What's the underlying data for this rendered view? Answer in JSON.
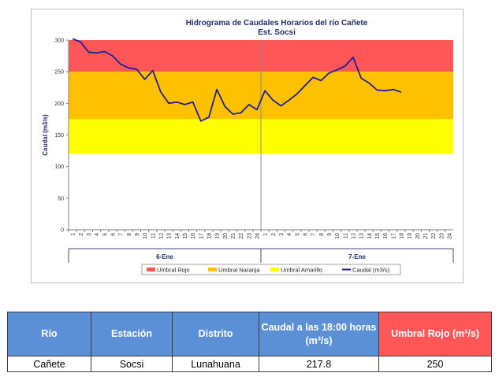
{
  "chart_data": {
    "type": "line",
    "title": "Hidrograma de Caudales Horarios del río Cañete",
    "subtitle": "Est. Socsi",
    "ylabel": "Caudal  (m3/s)",
    "xlabel": "",
    "ylim": [
      0,
      300
    ],
    "y_ticks": [
      "0",
      "50",
      "100",
      "150",
      "200",
      "250",
      "300"
    ],
    "x_ticks": [
      "1",
      "2",
      "3",
      "4",
      "5",
      "6",
      "7",
      "8",
      "9",
      "10",
      "11",
      "12",
      "13",
      "14",
      "15",
      "16",
      "17",
      "18",
      "19",
      "20",
      "21",
      "22",
      "23",
      "24",
      "1",
      "2",
      "3",
      "4",
      "5",
      "6",
      "7",
      "8",
      "9",
      "10",
      "11",
      "12",
      "13",
      "14",
      "15",
      "16",
      "17",
      "18",
      "19",
      "20",
      "21",
      "22",
      "23",
      "24"
    ],
    "day_labels": [
      "6-Ene",
      "7-Ene"
    ],
    "thresholds": [
      {
        "name": "Umbral Rojo",
        "from": 250,
        "to": 300,
        "color": "#ff5757"
      },
      {
        "name": "Umbral Naranja",
        "from": 175,
        "to": 250,
        "color": "#ffc000"
      },
      {
        "name": "Umbral Amarillo",
        "from": 120,
        "to": 175,
        "color": "#ffff00"
      }
    ],
    "series": [
      {
        "name": "Caudal (m3/s)",
        "color": "#1f1f9e",
        "x": [
          1,
          2,
          3,
          4,
          5,
          6,
          7,
          8,
          9,
          10,
          11,
          12,
          13,
          14,
          15,
          16,
          17,
          18,
          19,
          20,
          21,
          22,
          23,
          24,
          25,
          26,
          27,
          28,
          29,
          30,
          31,
          32,
          33,
          34,
          35,
          36,
          37,
          38,
          39,
          40,
          41,
          42
        ],
        "values": [
          305,
          297,
          281,
          280,
          282,
          275,
          262,
          256,
          254,
          238,
          252,
          218,
          200,
          202,
          198,
          202,
          172,
          178,
          222,
          195,
          183,
          185,
          198,
          190,
          220,
          205,
          196,
          205,
          215,
          228,
          241,
          236,
          248,
          253,
          259,
          273,
          240,
          232,
          221,
          220,
          222,
          217.8
        ]
      }
    ],
    "legend": [
      "Umbral Rojo",
      "Umbral Naranja",
      "Umbral Amarillo",
      "Caudal (m3/s)"
    ],
    "legend_position": "bottom",
    "grid": false
  },
  "table": {
    "headers": [
      "Río",
      "Estación",
      "Distrito",
      "Caudal a las 18:00 horas (m³/s)",
      "Umbral Rojo (m³/s)"
    ],
    "row": [
      "Cañete",
      "Socsi",
      "Lunahuana",
      "217.8",
      "250"
    ]
  },
  "colors": {
    "header_blue": "#5b8fd6",
    "header_red": "#ff5757",
    "title_text": "#1f2d6e",
    "series_line": "#1f1f9e"
  }
}
